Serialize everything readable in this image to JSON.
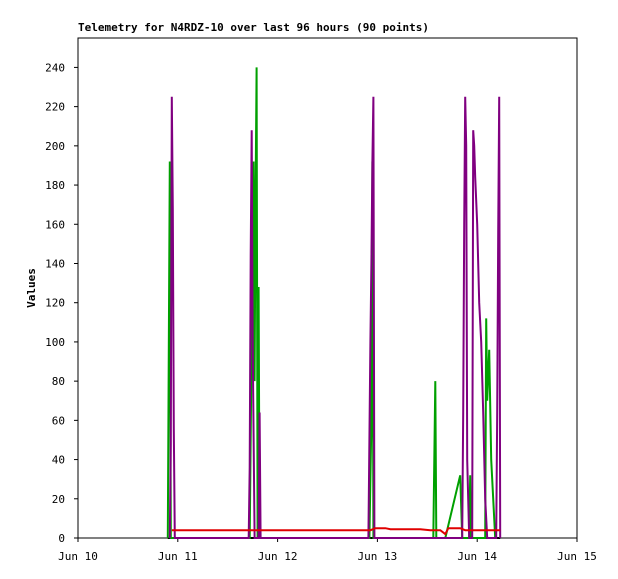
{
  "chart_data": {
    "type": "line",
    "title": "Telemetry for N4RDZ-10 over last 96 hours (90 points)",
    "ylabel": "Values",
    "xlim": [
      10,
      15
    ],
    "xticks": [
      {
        "value": 10,
        "label": "Jun 10"
      },
      {
        "value": 11,
        "label": "Jun 11"
      },
      {
        "value": 12,
        "label": "Jun 12"
      },
      {
        "value": 13,
        "label": "Jun 13"
      },
      {
        "value": 14,
        "label": "Jun 14"
      },
      {
        "value": 15,
        "label": "Jun 15"
      }
    ],
    "ylim": [
      0,
      255
    ],
    "yticks": [
      0,
      20,
      40,
      60,
      80,
      100,
      120,
      140,
      160,
      180,
      200,
      220,
      240
    ],
    "series": [
      {
        "color": "#000000",
        "x": [
          10.9,
          14.23
        ],
        "values": [
          0,
          0
        ]
      },
      {
        "color": "#00a000",
        "x": [
          10.9,
          10.91,
          10.92,
          10.93,
          11.72,
          11.74,
          11.76,
          11.77,
          11.78,
          11.79,
          11.8,
          11.81,
          11.82,
          12.92,
          12.94,
          12.95,
          12.96,
          13.56,
          13.57,
          13.58,
          13.59,
          13.68,
          13.83,
          13.85,
          13.92,
          13.93,
          13.94,
          14.08,
          14.09,
          14.1,
          14.12,
          14.14,
          14.16,
          14.18
        ],
        "values": [
          0,
          97,
          192,
          0,
          0,
          104,
          192,
          80,
          176,
          240,
          0,
          128,
          0,
          0,
          60,
          192,
          0,
          0,
          40,
          80,
          0,
          0,
          32,
          0,
          0,
          32,
          0,
          0,
          112,
          70,
          96,
          40,
          20,
          0
        ]
      },
      {
        "color": "#800080",
        "x": [
          10.92,
          10.93,
          10.94,
          10.95,
          10.96,
          10.97,
          11.71,
          11.72,
          11.73,
          11.74,
          11.75,
          11.77,
          11.81,
          11.82,
          11.83,
          12.91,
          12.93,
          12.94,
          12.95,
          12.96,
          12.97,
          13.85,
          13.86,
          13.87,
          13.88,
          13.89,
          13.9,
          13.92,
          13.95,
          13.96,
          13.97,
          13.98,
          14.0,
          14.02,
          14.04,
          14.06,
          14.08,
          14.1,
          14.19,
          14.2,
          14.21,
          14.22,
          14.23
        ],
        "values": [
          0,
          48,
          225,
          168,
          56,
          0,
          0,
          36,
          144,
          208,
          104,
          0,
          0,
          64,
          0,
          0,
          100,
          140,
          192,
          225,
          0,
          0,
          64,
          160,
          225,
          200,
          40,
          0,
          0,
          208,
          200,
          184,
          160,
          120,
          100,
          64,
          20,
          0,
          0,
          64,
          156,
          225,
          0
        ]
      },
      {
        "color": "#e00000",
        "x": [
          10.94,
          12.93,
          12.98,
          13.08,
          13.13,
          13.43,
          13.53,
          13.63,
          13.68,
          13.71,
          13.83,
          13.88,
          14.23
        ],
        "values": [
          4,
          4,
          5,
          5,
          4.5,
          4.5,
          4,
          4,
          2,
          5,
          5,
          4,
          4
        ]
      }
    ]
  }
}
